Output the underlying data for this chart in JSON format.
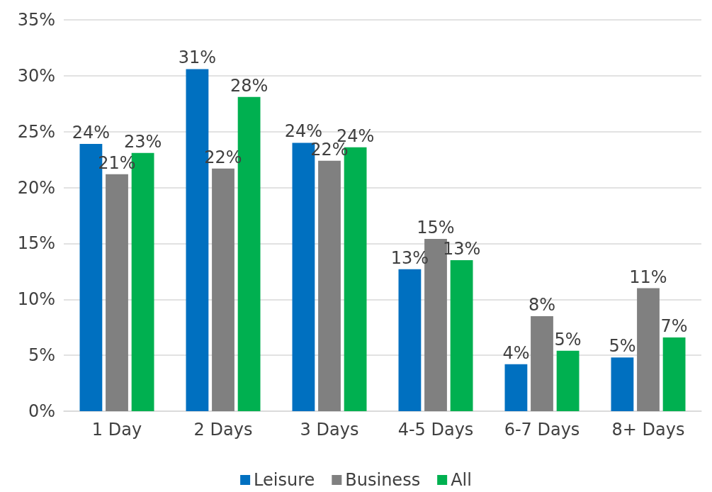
{
  "chart_data": {
    "type": "bar",
    "categories": [
      "1 Day",
      "2 Days",
      "3 Days",
      "4-5 Days",
      "6-7 Days",
      "8+ Days"
    ],
    "series": [
      {
        "name": "Leisure",
        "color": "#0070c0",
        "values": [
          23.9,
          30.6,
          24.0,
          12.7,
          4.2,
          4.8
        ],
        "value_labels": [
          "24%",
          "31%",
          "24%",
          "13%",
          "4%",
          "5%"
        ]
      },
      {
        "name": "Business",
        "color": "#808080",
        "values": [
          21.2,
          21.7,
          22.4,
          15.4,
          8.5,
          11.0
        ],
        "value_labels": [
          "21%",
          "22%",
          "22%",
          "15%",
          "8%",
          "11%"
        ]
      },
      {
        "name": "All",
        "color": "#00b050",
        "values": [
          23.1,
          28.1,
          23.6,
          13.5,
          5.4,
          6.6
        ],
        "value_labels": [
          "23%",
          "28%",
          "24%",
          "13%",
          "5%",
          "7%"
        ]
      }
    ],
    "ylim": [
      0,
      35
    ],
    "yticks": [
      {
        "value": 0,
        "label": "0%"
      },
      {
        "value": 5,
        "label": "5%"
      },
      {
        "value": 10,
        "label": "10%"
      },
      {
        "value": 15,
        "label": "15%"
      },
      {
        "value": 20,
        "label": "20%"
      },
      {
        "value": 25,
        "label": "25%"
      },
      {
        "value": 30,
        "label": "30%"
      },
      {
        "value": 35,
        "label": "35%"
      }
    ],
    "grid": "y",
    "legend": "bottom"
  }
}
